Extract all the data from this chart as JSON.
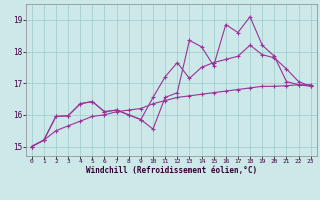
{
  "xlabel": "Windchill (Refroidissement éolien,°C)",
  "bg_color": "#cce8e8",
  "line_color": "#993399",
  "grid_color": "#99cccc",
  "x_ticks": [
    0,
    1,
    2,
    3,
    4,
    5,
    6,
    7,
    8,
    9,
    10,
    11,
    12,
    13,
    14,
    15,
    16,
    17,
    18,
    19,
    20,
    21,
    22,
    23
  ],
  "y_ticks": [
    15,
    16,
    17,
    18,
    19
  ],
  "xlim": [
    -0.5,
    23.5
  ],
  "ylim": [
    14.7,
    19.5
  ],
  "line1_x": [
    0,
    1,
    2,
    3,
    4,
    5,
    6,
    7,
    8,
    9,
    10,
    11,
    12,
    13,
    14,
    15,
    16,
    17,
    18,
    19,
    20,
    21,
    22,
    23
  ],
  "line1_y": [
    15.0,
    15.2,
    15.95,
    15.97,
    16.35,
    16.42,
    16.1,
    16.15,
    16.0,
    15.85,
    15.55,
    16.55,
    16.7,
    18.35,
    18.15,
    17.55,
    18.85,
    18.6,
    19.1,
    18.2,
    17.85,
    17.05,
    16.95,
    16.9
  ],
  "line2_x": [
    0,
    1,
    2,
    3,
    4,
    5,
    6,
    7,
    8,
    9,
    10,
    11,
    12,
    13,
    14,
    15,
    16,
    17,
    18,
    19,
    20,
    21,
    22,
    23
  ],
  "line2_y": [
    15.0,
    15.2,
    15.95,
    15.97,
    16.35,
    16.42,
    16.1,
    16.15,
    16.0,
    15.85,
    16.55,
    17.2,
    17.65,
    17.15,
    17.5,
    17.65,
    17.75,
    17.85,
    18.2,
    17.9,
    17.8,
    17.45,
    17.05,
    16.9
  ],
  "line3_x": [
    0,
    1,
    2,
    3,
    4,
    5,
    6,
    7,
    8,
    9,
    10,
    11,
    12,
    13,
    14,
    15,
    16,
    17,
    18,
    19,
    20,
    21,
    22,
    23
  ],
  "line3_y": [
    15.0,
    15.2,
    15.5,
    15.65,
    15.8,
    15.95,
    16.0,
    16.1,
    16.15,
    16.2,
    16.35,
    16.45,
    16.55,
    16.6,
    16.65,
    16.7,
    16.75,
    16.8,
    16.85,
    16.9,
    16.9,
    16.92,
    16.95,
    16.95
  ]
}
